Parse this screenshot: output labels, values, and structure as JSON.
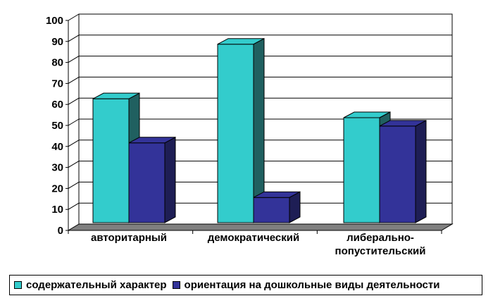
{
  "chart_data": {
    "type": "bar",
    "categories": [
      [
        "авторитарный"
      ],
      [
        "демократический"
      ],
      [
        "либерально-",
        "попустительский"
      ]
    ],
    "series": [
      {
        "name": "содержательный характер",
        "values": [
          59,
          85,
          50
        ],
        "color": "#33CCCC",
        "side_color": "#206060"
      },
      {
        "name": "ориентация на дошкольные виды деятельности",
        "values": [
          38,
          12,
          46
        ],
        "color": "#333399",
        "side_color": "#1e1e55"
      }
    ],
    "ylim": [
      0,
      100
    ],
    "yticks": [
      "0",
      "10",
      "20",
      "30",
      "40",
      "50",
      "60",
      "70",
      "80",
      "90",
      "100"
    ],
    "grid": true,
    "style": "3d",
    "legend_position": "bottom"
  }
}
